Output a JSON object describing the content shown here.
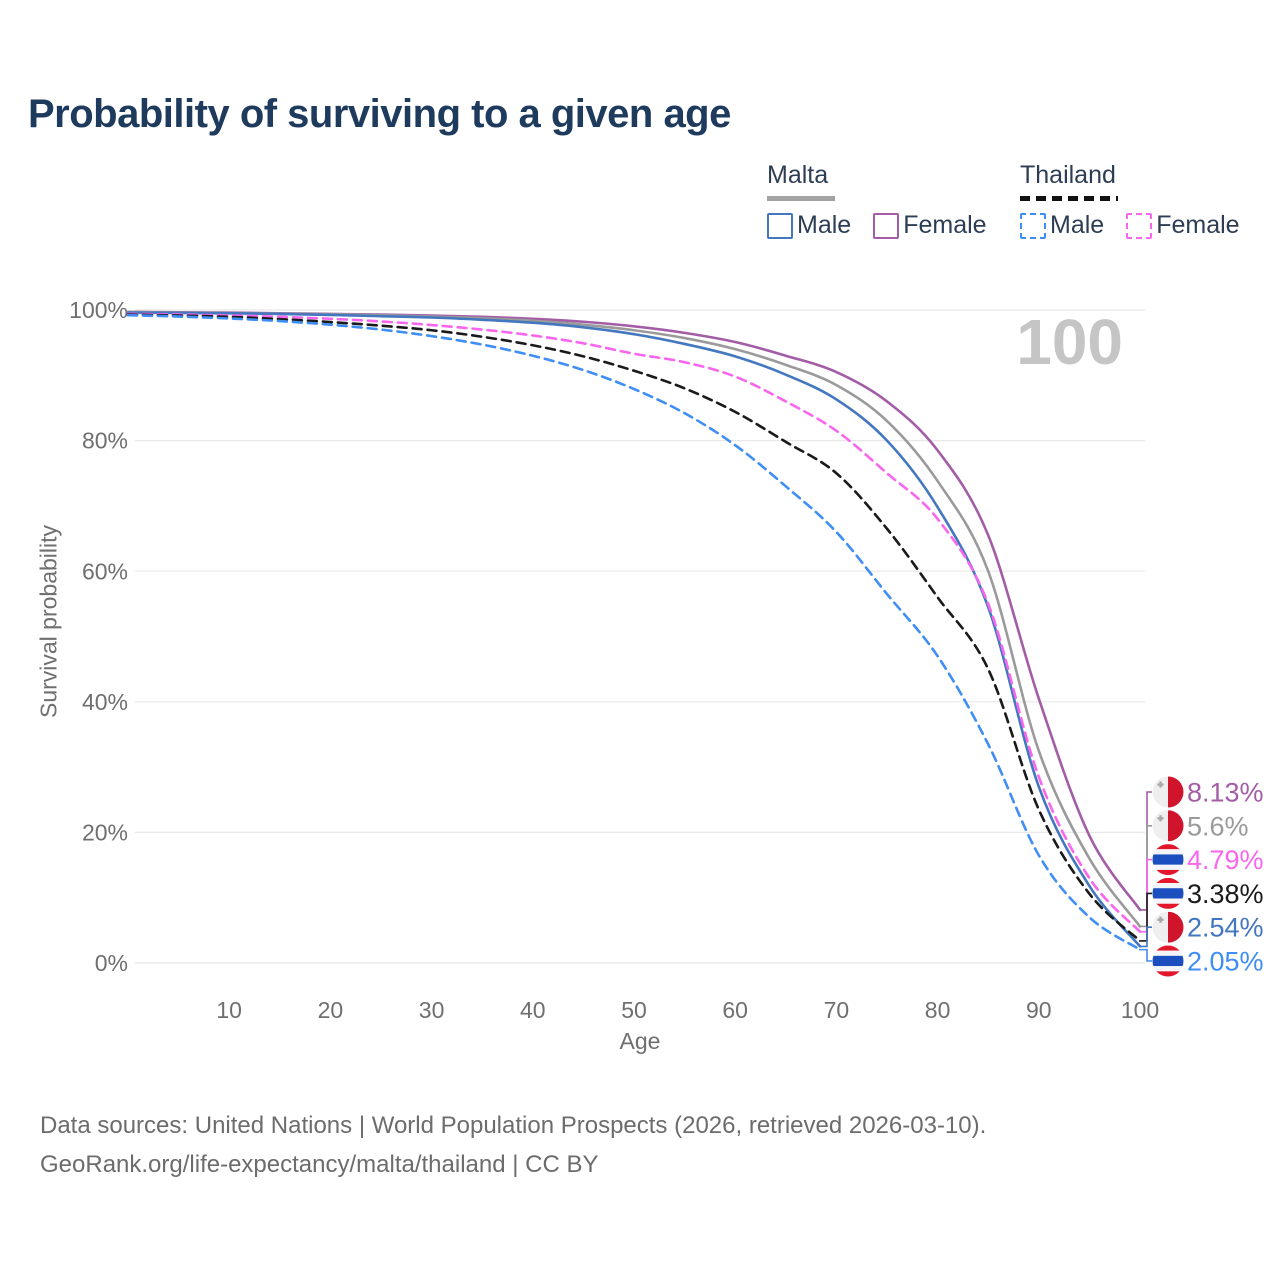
{
  "header": {
    "title": "Probability of surviving to a given age"
  },
  "legend": {
    "malta": {
      "title": "Malta",
      "male": "Male",
      "female": "Female"
    },
    "thailand": {
      "title": "Thailand",
      "male": "Male",
      "female": "Female"
    }
  },
  "axes": {
    "y_title": "Survival probability",
    "x_title": "Age"
  },
  "source": {
    "line1": "Data sources: United Nations | World Population Prospects (2026, retrieved 2026-03-10).",
    "line2": "GeoRank.org/life-expectancy/malta/thailand | CC BY"
  },
  "colors": {
    "title_text": "#1e3a5c",
    "legend_text": "#2d3e54",
    "axis_text": "#6f6f6f",
    "gridline": "#e8e8e8",
    "watermark": "#c5c5c5",
    "malta_swatch": "#a3a3a3",
    "thailand_swatch": "#111111"
  },
  "chart_data": {
    "type": "line",
    "title": "Probability of surviving to a given age",
    "xlabel": "Age",
    "ylabel": "Survival probability",
    "xlim": [
      0,
      100
    ],
    "ylim": [
      0,
      100
    ],
    "grid": true,
    "legend_position": "top-right",
    "watermark": "100",
    "x_ticks": [
      10,
      20,
      30,
      40,
      50,
      60,
      70,
      80,
      90,
      100
    ],
    "y_ticks": [
      0,
      20,
      40,
      60,
      80,
      100
    ],
    "y_tick_suffix": "%",
    "x": [
      0,
      5,
      10,
      15,
      20,
      25,
      30,
      35,
      40,
      45,
      50,
      55,
      60,
      65,
      70,
      75,
      80,
      85,
      90,
      95,
      100
    ],
    "series": [
      {
        "name": "Malta Female",
        "country": "Malta",
        "sex": "Female",
        "style": "solid",
        "color": "#a35da6",
        "flag": "malta",
        "end_label": "8.13%",
        "values": [
          99.7,
          99.65,
          99.6,
          99.5,
          99.4,
          99.3,
          99.15,
          98.95,
          98.65,
          98.2,
          97.5,
          96.5,
          95.1,
          93.0,
          90.5,
          86.0,
          78.5,
          65.5,
          40.5,
          19.5,
          8.13
        ]
      },
      {
        "name": "Malta",
        "country": "Malta",
        "sex": "Both",
        "style": "solid",
        "color": "#9a9a9a",
        "flag": "malta",
        "end_label": "5.6%",
        "values": [
          99.7,
          99.6,
          99.55,
          99.45,
          99.35,
          99.2,
          99.0,
          98.75,
          98.35,
          97.75,
          96.9,
          95.7,
          94.0,
          91.6,
          88.5,
          83.0,
          73.8,
          60.0,
          32.5,
          16.0,
          5.6
        ]
      },
      {
        "name": "Thailand Female",
        "country": "Thailand",
        "sex": "Female",
        "style": "dashed",
        "color": "#f966ee",
        "flag": "thailand",
        "end_label": "4.79%",
        "values": [
          99.4,
          99.3,
          99.15,
          98.95,
          98.65,
          98.25,
          97.7,
          97.0,
          96.1,
          94.9,
          93.3,
          92.0,
          89.8,
          86.0,
          81.5,
          75.0,
          68.0,
          55.0,
          28.5,
          13.0,
          4.79
        ]
      },
      {
        "name": "Thailand",
        "country": "Thailand",
        "sex": "Both",
        "style": "dashed",
        "color": "#1a1a1a",
        "flag": "thailand",
        "end_label": "3.38%",
        "values": [
          99.3,
          99.15,
          98.95,
          98.6,
          98.15,
          97.6,
          96.9,
          95.9,
          94.6,
          92.9,
          90.7,
          88.0,
          84.4,
          79.8,
          75.0,
          66.5,
          56.0,
          45.0,
          23.5,
          10.6,
          3.38
        ]
      },
      {
        "name": "Malta Male",
        "country": "Malta",
        "sex": "Male",
        "style": "solid",
        "color": "#4377bf",
        "flag": "malta",
        "end_label": "2.54%",
        "values": [
          99.6,
          99.55,
          99.5,
          99.4,
          99.25,
          99.05,
          98.85,
          98.5,
          98.05,
          97.35,
          96.3,
          94.8,
          92.9,
          90.1,
          86.3,
          80.0,
          69.8,
          54.5,
          27.0,
          11.8,
          2.54
        ]
      },
      {
        "name": "Thailand Male",
        "country": "Thailand",
        "sex": "Male",
        "style": "dashed",
        "color": "#3f8ef5",
        "flag": "thailand",
        "end_label": "2.05%",
        "values": [
          99.2,
          99.0,
          98.7,
          98.3,
          97.75,
          97.0,
          96.0,
          94.7,
          93.0,
          90.8,
          87.9,
          84.2,
          79.3,
          73.0,
          66.0,
          56.5,
          47.0,
          33.5,
          16.5,
          7.0,
          2.05
        ]
      }
    ]
  }
}
